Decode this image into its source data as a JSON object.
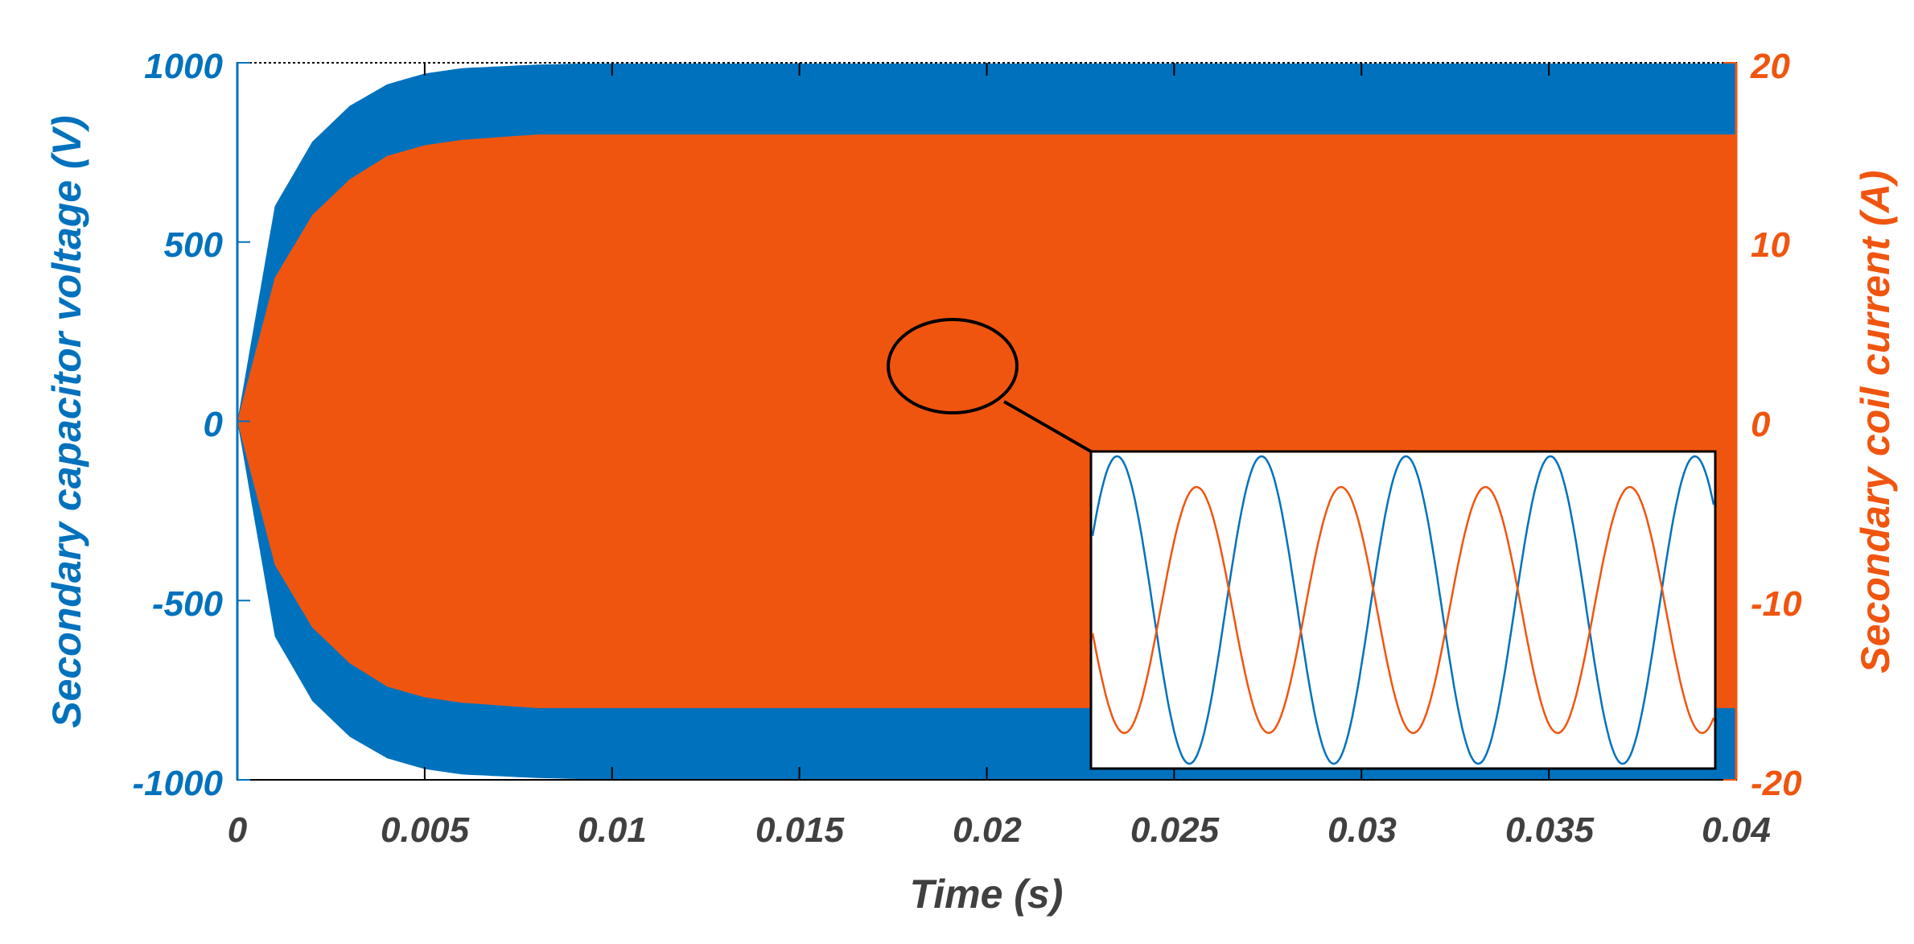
{
  "chart_data": {
    "type": "line",
    "title": "",
    "xlabel": "Time (s)",
    "ylabel_left": "Secondary capacitor voltage (V)",
    "ylabel_right": "Secondary coil current (A)",
    "xlim": [
      0,
      0.04
    ],
    "ylim_left": [
      -1000,
      1000
    ],
    "ylim_right": [
      -20,
      20
    ],
    "x_ticks": [
      "0",
      "0.005",
      "0.01",
      "0.015",
      "0.02",
      "0.025",
      "0.03",
      "0.035",
      "0.04"
    ],
    "y_left_ticks": [
      "1000",
      "500",
      "0",
      "-500",
      "-1000"
    ],
    "y_right_ticks": [
      "20",
      "10",
      "0",
      "-10",
      "-20"
    ],
    "grid": false,
    "series": [
      {
        "name": "Secondary capacitor voltage",
        "axis": "left",
        "color": "#0072BD",
        "waveform": "oscillating envelope",
        "envelope_x": [
          0,
          0.001,
          0.002,
          0.003,
          0.004,
          0.005,
          0.006,
          0.008,
          0.01,
          0.04
        ],
        "envelope_y": [
          0,
          600,
          780,
          880,
          940,
          970,
          985,
          995,
          1000,
          1000
        ]
      },
      {
        "name": "Secondary coil current",
        "axis": "right",
        "color": "#F0550F",
        "waveform": "oscillating envelope",
        "envelope_x": [
          0,
          0.001,
          0.002,
          0.003,
          0.004,
          0.005,
          0.006,
          0.008,
          0.01,
          0.04
        ],
        "envelope_y": [
          0,
          8,
          11.5,
          13.5,
          14.8,
          15.4,
          15.7,
          16,
          16,
          16
        ]
      }
    ],
    "inset": {
      "description": "zoomed view of the steady-state oscillation",
      "voltage_cycles": 4.3,
      "current_cycles": 4.3,
      "current_amplitude_ratio": 0.8,
      "phase_lead_cycles": 0.25
    }
  },
  "colors": {
    "voltage": "#0072BD",
    "current": "#F0550F",
    "axis": "#000000",
    "x_tick_text": "#404040"
  }
}
